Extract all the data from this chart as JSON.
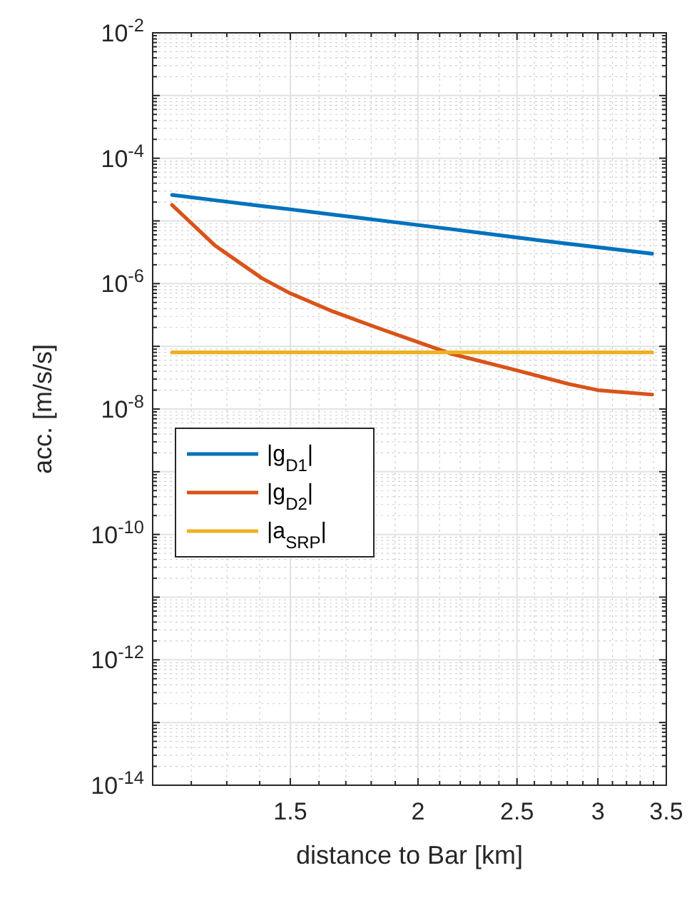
{
  "chart_data": {
    "type": "line",
    "xlabel": "distance to Bar [km]",
    "ylabel": "acc. [m/s/s]",
    "log": "xy",
    "grid": true,
    "legend": "left",
    "line_style": "solid",
    "marker": "none",
    "xlim": [
      1.1,
      3.5
    ],
    "ylim": [
      1e-14,
      0.01
    ],
    "xticks": [
      {
        "value": 1.2,
        "label": null
      },
      {
        "value": 1.3,
        "label": null
      },
      {
        "value": 1.4,
        "label": null
      },
      1.5,
      {
        "value": 1.6,
        "label": null
      },
      {
        "value": 1.7,
        "label": null
      },
      {
        "value": 1.8,
        "label": null
      },
      {
        "value": 1.9,
        "label": null
      },
      2,
      {
        "value": 2.1,
        "label": null
      },
      {
        "value": 2.2,
        "label": null
      },
      {
        "value": 2.3,
        "label": null
      },
      {
        "value": 2.4,
        "label": null
      },
      2.5,
      {
        "value": 2.6,
        "label": null
      },
      {
        "value": 2.7,
        "label": null
      },
      {
        "value": 2.8,
        "label": null
      },
      {
        "value": 2.9,
        "label": null
      },
      3,
      {
        "value": 3.1,
        "label": null
      },
      {
        "value": 3.2,
        "label": null
      },
      {
        "value": 3.3,
        "label": null
      },
      {
        "value": 3.4,
        "label": null
      },
      3.5
    ],
    "yticks": [
      {
        "value": 1e-14,
        "label": "10$^{-14}$"
      },
      {
        "value": 1e-13,
        "label": null
      },
      {
        "value": 1e-12,
        "label": "10$^{-12}$"
      },
      {
        "value": 1e-11,
        "label": null
      },
      {
        "value": 1e-10,
        "label": "10$^{-10}$"
      },
      {
        "value": 1e-09,
        "label": null
      },
      {
        "value": 1e-08,
        "label": "10$^{-8}$"
      },
      {
        "value": 1e-07,
        "label": null
      },
      {
        "value": 1e-06,
        "label": "10$^{-6}$"
      },
      {
        "value": 1e-05,
        "label": null
      },
      {
        "value": 0.0001,
        "label": "10$^{-4}$"
      },
      {
        "value": 0.001,
        "label": null
      },
      {
        "value": 0.01,
        "label": "10$^{-2}$"
      }
    ],
    "x": [
      1.149,
      1.265,
      1.407,
      1.5,
      1.651,
      1.837,
      2.0,
      2.156,
      2.49,
      2.81,
      3.0,
      3.39
    ],
    "series": [
      {
        "name": "|g$_{D1}$|",
        "color": "#0072bd",
        "values": [
          2.6e-05,
          2.14e-05,
          1.73e-05,
          1.53e-05,
          1.26e-05,
          1.02e-05,
          8.6e-06,
          7.4e-06,
          5.5e-06,
          4.3e-06,
          3.8e-06,
          3e-06
        ]
      },
      {
        "name": "|g$_{D2}$|",
        "color": "#d95319",
        "values": [
          1.8e-05,
          4.1e-06,
          1.22e-06,
          7e-07,
          3.6e-07,
          1.9e-07,
          1.17e-07,
          7.6e-08,
          4.2e-08,
          2.5e-08,
          2e-08,
          1.7e-08
        ]
      },
      {
        "name": "|a$_{SRP}$|",
        "color": "#edb120",
        "values": [
          8e-08,
          8e-08,
          8e-08,
          8e-08,
          8e-08,
          8e-08,
          8e-08,
          8e-08,
          8e-08,
          8e-08,
          8e-08,
          8e-08
        ]
      }
    ]
  }
}
